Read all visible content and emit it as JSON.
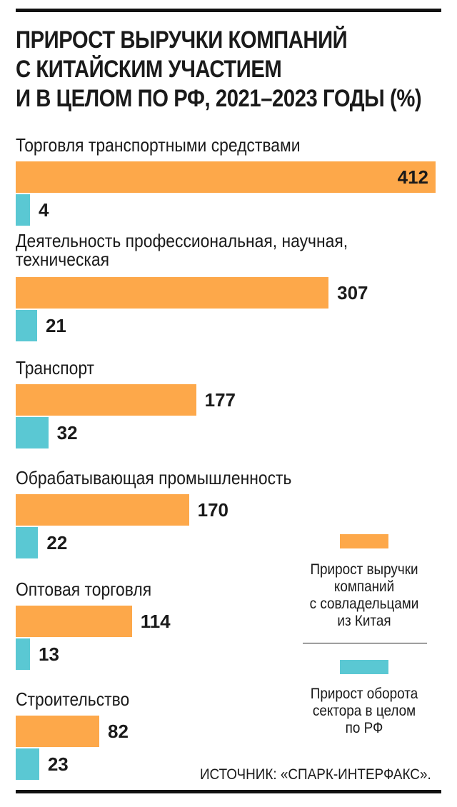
{
  "chart_data": {
    "type": "bar",
    "orientation": "horizontal",
    "title_lines": [
      "ПРИРОСТ ВЫРУЧКИ КОМПАНИЙ",
      "С КИТАЙСКИМ УЧАСТИЕМ",
      "И В ЦЕЛОМ ПО РФ, 2021–2023 ГОДЫ (%)"
    ],
    "categories": [
      [
        "Торговля транспортными средствами"
      ],
      [
        "Деятельность профессиональная, научная,",
        "техническая"
      ],
      [
        "Транспорт"
      ],
      [
        "Обрабатывающая промышленность"
      ],
      [
        "Оптовая торговля"
      ],
      [
        "Строительство"
      ]
    ],
    "series": [
      {
        "name": "Прирост выручки компаний с совладельцами из Китая",
        "legend_lines": [
          "Прирост выручки",
          "компаний",
          "с совладельцами",
          "из Китая"
        ],
        "color": "#fda84a",
        "values": [
          412,
          307,
          177,
          170,
          114,
          82
        ]
      },
      {
        "name": "Прирост оборота сектора в целом по РФ",
        "legend_lines": [
          "Прирост оборота",
          "сектора в целом",
          "по РФ"
        ],
        "color": "#5ac8d3",
        "values": [
          4,
          21,
          32,
          22,
          13,
          23
        ]
      }
    ],
    "xlim": [
      0,
      412
    ],
    "grid": false,
    "legend_position": "right",
    "source": "ИСТОЧНИК: «СПАРК-ИНТЕРФАКС»."
  }
}
